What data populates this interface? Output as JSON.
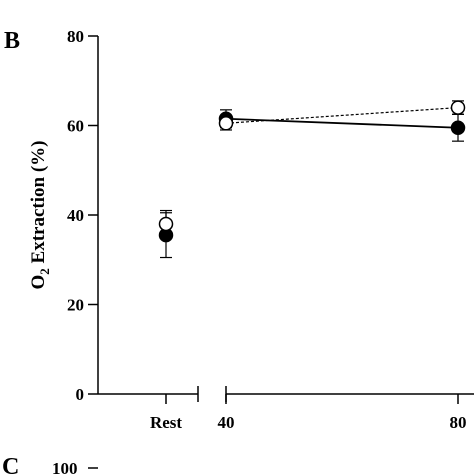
{
  "chart_data": {
    "type": "scatter",
    "panel_label": "B",
    "ylabel": {
      "main": "O",
      "sub": "2",
      "rest": " Extraction (%)"
    },
    "ylim": [
      0,
      80
    ],
    "yticks": [
      0,
      20,
      40,
      60,
      80
    ],
    "x_segments": [
      {
        "ticks": [
          "Rest"
        ]
      },
      {
        "ticks": [
          "40",
          "80"
        ]
      }
    ],
    "series": [
      {
        "style": "filled",
        "line": "solid",
        "color": "#000000",
        "points": [
          {
            "x": "Rest",
            "y": 35.5,
            "err": 5.0
          },
          {
            "x": "40",
            "y": 61.5,
            "err": 2.0
          },
          {
            "x": "80",
            "y": 59.5,
            "err": 3.0
          }
        ]
      },
      {
        "style": "open",
        "line": "dashed",
        "color": "#000000",
        "points": [
          {
            "x": "Rest",
            "y": 38.0,
            "err": 3.0
          },
          {
            "x": "40",
            "y": 60.5,
            "err": 1.5
          },
          {
            "x": "80",
            "y": 64.0,
            "err": 1.5
          }
        ]
      }
    ]
  },
  "next_panel": {
    "letter": "C",
    "top_tick": "100"
  }
}
